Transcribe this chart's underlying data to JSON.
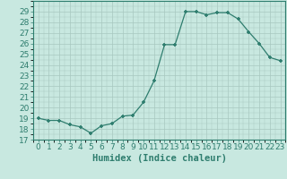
{
  "x": [
    0,
    1,
    2,
    3,
    4,
    5,
    6,
    7,
    8,
    9,
    10,
    11,
    12,
    13,
    14,
    15,
    16,
    17,
    18,
    19,
    20,
    21,
    22,
    23
  ],
  "y": [
    19.0,
    18.8,
    18.8,
    18.4,
    18.2,
    17.6,
    18.3,
    18.5,
    19.2,
    19.3,
    20.5,
    22.5,
    25.9,
    25.9,
    29.0,
    29.0,
    28.7,
    28.9,
    28.9,
    28.3,
    27.1,
    26.0,
    24.7,
    24.4
  ],
  "xlabel": "Humidex (Indice chaleur)",
  "xlim": [
    -0.5,
    23.5
  ],
  "ylim": [
    17,
    30
  ],
  "yticks": [
    17,
    18,
    19,
    20,
    21,
    22,
    23,
    24,
    25,
    26,
    27,
    28,
    29
  ],
  "xticks": [
    0,
    1,
    2,
    3,
    4,
    5,
    6,
    7,
    8,
    9,
    10,
    11,
    12,
    13,
    14,
    15,
    16,
    17,
    18,
    19,
    20,
    21,
    22,
    23
  ],
  "line_color": "#2E7D6E",
  "marker_color": "#2E7D6E",
  "bg_color": "#C8E8E0",
  "grid_color": "#A8C8C0",
  "label_fontsize": 7.5,
  "tick_fontsize": 6.5
}
